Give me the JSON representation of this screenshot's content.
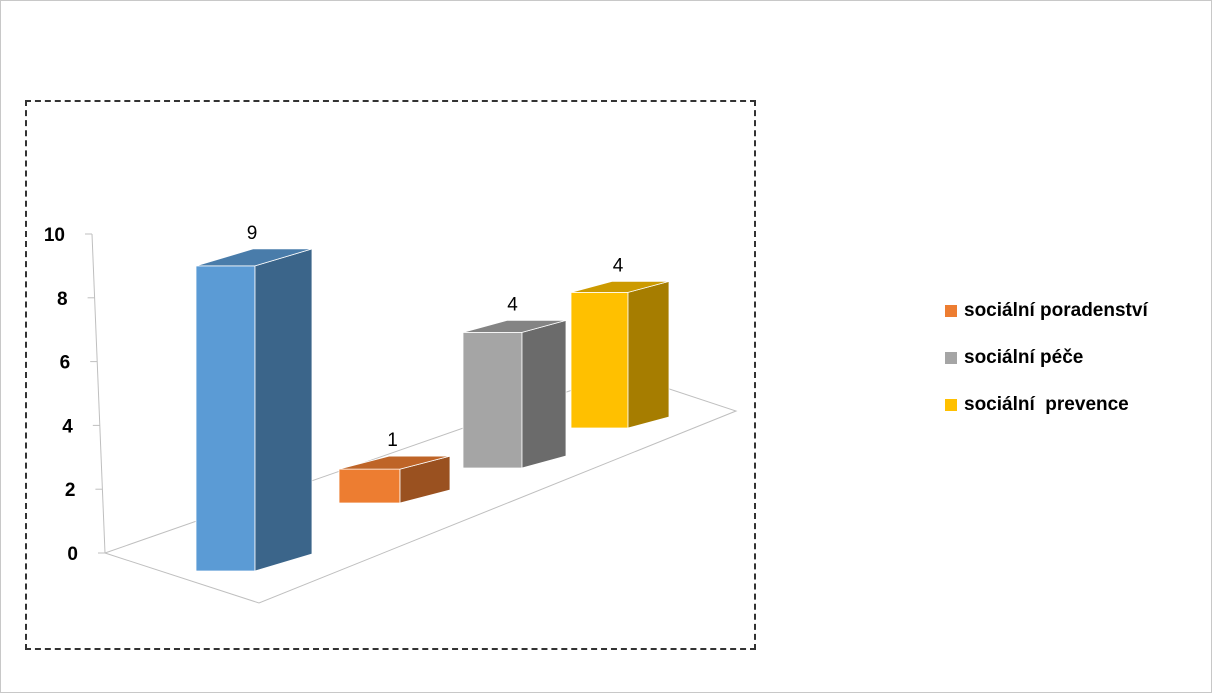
{
  "chart_data": {
    "type": "bar",
    "categories": [
      "",
      "sociální poradenství",
      "sociální péče",
      "sociální  prevence"
    ],
    "values": [
      9,
      1,
      4,
      4
    ],
    "title": "",
    "xlabel": "",
    "ylabel": "",
    "ylim": [
      0,
      10
    ],
    "yticks": [
      "0",
      "2",
      "4",
      "6",
      "8",
      "10"
    ],
    "data_labels": [
      "9",
      "1",
      "4",
      "4"
    ],
    "colors": [
      "#5b9bd5",
      "#ed7d31",
      "#a5a5a5",
      "#ffc000"
    ],
    "legend_position": "right",
    "grid": false
  },
  "legend": [
    {
      "label": "sociální poradenství",
      "color": "#ed7d31"
    },
    {
      "label": "sociální péče",
      "color": "#a5a5a5"
    },
    {
      "label": "sociální  prevence",
      "color": "#ffc000"
    }
  ]
}
